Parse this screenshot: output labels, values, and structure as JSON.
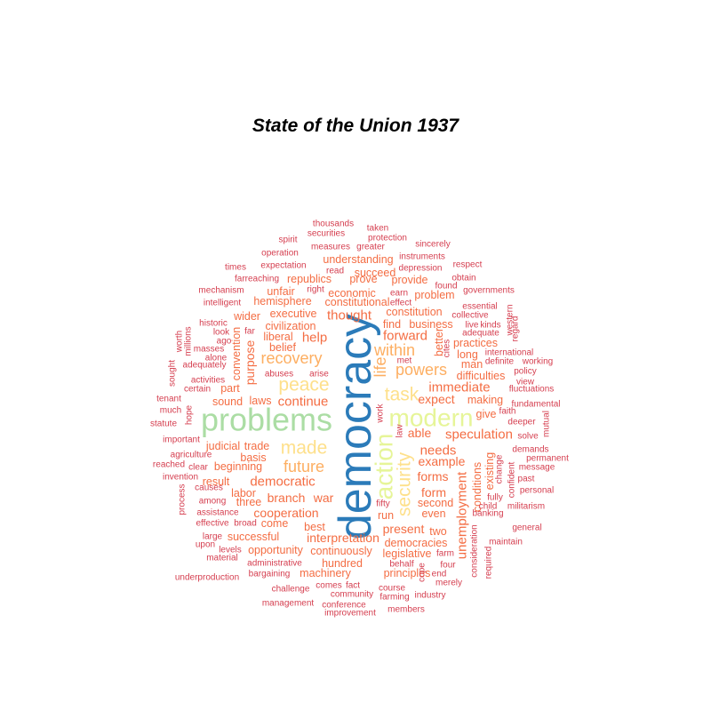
{
  "chart_data": {
    "type": "wordcloud",
    "title": "State of the Union 1937",
    "palette": {
      "c1": "#2b7bb9",
      "c2": "#abdda4",
      "c3": "#e6f598",
      "c4": "#fee08b",
      "c5": "#fdae61",
      "c6": "#f46d43",
      "c7": "#d53e4f"
    },
    "words": [
      {
        "text": "democracy",
        "tier": 1,
        "color": "c1",
        "rotate": true
      },
      {
        "text": "problems",
        "tier": 2,
        "color": "c2"
      },
      {
        "text": "modern",
        "tier": 3,
        "color": "c3"
      },
      {
        "text": "action",
        "tier": 3,
        "color": "c3",
        "rotate": true
      },
      {
        "text": "task",
        "tier": 4,
        "color": "c4"
      },
      {
        "text": "security",
        "tier": 4,
        "color": "c4",
        "rotate": true
      },
      {
        "text": "peace",
        "tier": 4,
        "color": "c4"
      },
      {
        "text": "made",
        "tier": 4,
        "color": "c4"
      },
      {
        "text": "recovery",
        "tier": 5,
        "color": "c5"
      },
      {
        "text": "powers",
        "tier": 5,
        "color": "c5"
      },
      {
        "text": "within",
        "tier": 5,
        "color": "c5"
      },
      {
        "text": "future",
        "tier": 5,
        "color": "c5"
      },
      {
        "text": "life",
        "tier": 5,
        "color": "c5",
        "rotate": true
      },
      {
        "text": "democratic",
        "tier": 6,
        "color": "c6"
      },
      {
        "text": "speculation",
        "tier": 6,
        "color": "c6"
      },
      {
        "text": "unemployment",
        "tier": 6,
        "color": "c6",
        "rotate": true
      },
      {
        "text": "needs",
        "tier": 6,
        "color": "c6"
      },
      {
        "text": "forward",
        "tier": 6,
        "color": "c6"
      },
      {
        "text": "immediate",
        "tier": 6,
        "color": "c6"
      },
      {
        "text": "help",
        "tier": 6,
        "color": "c6"
      },
      {
        "text": "thought",
        "tier": 6,
        "color": "c6"
      },
      {
        "text": "continue",
        "tier": 6,
        "color": "c6"
      },
      {
        "text": "cooperation",
        "tier": 7,
        "color": "c6"
      },
      {
        "text": "interpretation",
        "tier": 7,
        "color": "c6"
      },
      {
        "text": "example",
        "tier": 7,
        "color": "c6"
      },
      {
        "text": "forms",
        "tier": 7,
        "color": "c6"
      },
      {
        "text": "expect",
        "tier": 7,
        "color": "c6"
      },
      {
        "text": "able",
        "tier": 7,
        "color": "c6"
      },
      {
        "text": "purpose",
        "tier": 7,
        "color": "c6",
        "rotate": true
      },
      {
        "text": "present",
        "tier": 7,
        "color": "c6"
      },
      {
        "text": "form",
        "tier": 7,
        "color": "c6"
      },
      {
        "text": "branch",
        "tier": 7,
        "color": "c6"
      },
      {
        "text": "war",
        "tier": 7,
        "color": "c6"
      },
      {
        "text": "liberal",
        "tier": 8,
        "color": "c6"
      },
      {
        "text": "laws",
        "tier": 8,
        "color": "c6"
      },
      {
        "text": "trade",
        "tier": 8,
        "color": "c6"
      },
      {
        "text": "executive",
        "tier": 8,
        "color": "c6"
      },
      {
        "text": "understanding",
        "tier": 8,
        "color": "c6"
      },
      {
        "text": "economic",
        "tier": 8,
        "color": "c6"
      },
      {
        "text": "succeed",
        "tier": 8,
        "color": "c6"
      },
      {
        "text": "constitution",
        "tier": 8,
        "color": "c6"
      },
      {
        "text": "business",
        "tier": 8,
        "color": "c6"
      },
      {
        "text": "practices",
        "tier": 8,
        "color": "c6"
      },
      {
        "text": "difficulties",
        "tier": 8,
        "color": "c6"
      },
      {
        "text": "making",
        "tier": 8,
        "color": "c6"
      },
      {
        "text": "conditions",
        "tier": 8,
        "color": "c6",
        "rotate": true
      },
      {
        "text": "second",
        "tier": 8,
        "color": "c6"
      },
      {
        "text": "even",
        "tier": 8,
        "color": "c6"
      },
      {
        "text": "democracies",
        "tier": 8,
        "color": "c6"
      },
      {
        "text": "legislative",
        "tier": 8,
        "color": "c6"
      },
      {
        "text": "principles",
        "tier": 8,
        "color": "c6"
      },
      {
        "text": "successful",
        "tier": 8,
        "color": "c6"
      },
      {
        "text": "opportunity",
        "tier": 8,
        "color": "c6"
      },
      {
        "text": "continuously",
        "tier": 8,
        "color": "c6"
      },
      {
        "text": "hundred",
        "tier": 8,
        "color": "c6"
      },
      {
        "text": "machinery",
        "tier": 8,
        "color": "c6"
      },
      {
        "text": "beginning",
        "tier": 8,
        "color": "c6"
      },
      {
        "text": "result",
        "tier": 8,
        "color": "c6"
      },
      {
        "text": "three",
        "tier": 8,
        "color": "c6"
      },
      {
        "text": "labor",
        "tier": 8,
        "color": "c6"
      },
      {
        "text": "come",
        "tier": 8,
        "color": "c6"
      },
      {
        "text": "best",
        "tier": 8,
        "color": "c6"
      },
      {
        "text": "two",
        "tier": 8,
        "color": "c6"
      },
      {
        "text": "run",
        "tier": 8,
        "color": "c6"
      },
      {
        "text": "judicial",
        "tier": 8,
        "color": "c6"
      },
      {
        "text": "wider",
        "tier": 8,
        "color": "c6"
      },
      {
        "text": "hemisphere",
        "tier": 8,
        "color": "c6"
      },
      {
        "text": "civilization",
        "tier": 8,
        "color": "c6"
      },
      {
        "text": "constitutional",
        "tier": 8,
        "color": "c6"
      },
      {
        "text": "republics",
        "tier": 8,
        "color": "c6"
      },
      {
        "text": "unfair",
        "tier": 8,
        "color": "c6"
      },
      {
        "text": "prove",
        "tier": 8,
        "color": "c6"
      },
      {
        "text": "provide",
        "tier": 8,
        "color": "c6"
      },
      {
        "text": "problem",
        "tier": 8,
        "color": "c6"
      },
      {
        "text": "find",
        "tier": 8,
        "color": "c6"
      },
      {
        "text": "long",
        "tier": 8,
        "color": "c6"
      },
      {
        "text": "belief",
        "tier": 8,
        "color": "c6"
      },
      {
        "text": "part",
        "tier": 8,
        "color": "c6"
      },
      {
        "text": "sound",
        "tier": 8,
        "color": "c6"
      },
      {
        "text": "basis",
        "tier": 8,
        "color": "c6"
      },
      {
        "text": "give",
        "tier": 8,
        "color": "c6"
      },
      {
        "text": "man",
        "tier": 8,
        "color": "c6"
      },
      {
        "text": "existing",
        "tier": 8,
        "color": "c6",
        "rotate": true
      },
      {
        "text": "convention",
        "tier": 8,
        "color": "c6",
        "rotate": true
      },
      {
        "text": "better",
        "tier": 8,
        "color": "c6",
        "rotate": true
      },
      {
        "text": "thousands",
        "tier": 9,
        "color": "c7"
      },
      {
        "text": "taken",
        "tier": 9,
        "color": "c7"
      },
      {
        "text": "securities",
        "tier": 9,
        "color": "c7"
      },
      {
        "text": "protection",
        "tier": 9,
        "color": "c7"
      },
      {
        "text": "spirit",
        "tier": 9,
        "color": "c7"
      },
      {
        "text": "measures",
        "tier": 9,
        "color": "c7"
      },
      {
        "text": "greater",
        "tier": 9,
        "color": "c7"
      },
      {
        "text": "sincerely",
        "tier": 9,
        "color": "c7"
      },
      {
        "text": "operation",
        "tier": 9,
        "color": "c7"
      },
      {
        "text": "instruments",
        "tier": 9,
        "color": "c7"
      },
      {
        "text": "times",
        "tier": 9,
        "color": "c7"
      },
      {
        "text": "expectation",
        "tier": 9,
        "color": "c7"
      },
      {
        "text": "read",
        "tier": 9,
        "color": "c7"
      },
      {
        "text": "depression",
        "tier": 9,
        "color": "c7"
      },
      {
        "text": "respect",
        "tier": 9,
        "color": "c7"
      },
      {
        "text": "farreaching",
        "tier": 9,
        "color": "c7"
      },
      {
        "text": "obtain",
        "tier": 9,
        "color": "c7"
      },
      {
        "text": "found",
        "tier": 9,
        "color": "c7"
      },
      {
        "text": "mechanism",
        "tier": 9,
        "color": "c7"
      },
      {
        "text": "right",
        "tier": 9,
        "color": "c7"
      },
      {
        "text": "earn",
        "tier": 9,
        "color": "c7"
      },
      {
        "text": "governments",
        "tier": 9,
        "color": "c7"
      },
      {
        "text": "intelligent",
        "tier": 9,
        "color": "c7"
      },
      {
        "text": "effect",
        "tier": 9,
        "color": "c7"
      },
      {
        "text": "essential",
        "tier": 9,
        "color": "c7"
      },
      {
        "text": "collective",
        "tier": 9,
        "color": "c7"
      },
      {
        "text": "western",
        "tier": 9,
        "color": "c7",
        "rotate": true
      },
      {
        "text": "regard",
        "tier": 9,
        "color": "c7",
        "rotate": true
      },
      {
        "text": "historic",
        "tier": 9,
        "color": "c7"
      },
      {
        "text": "far",
        "tier": 9,
        "color": "c7"
      },
      {
        "text": "live",
        "tier": 9,
        "color": "c7"
      },
      {
        "text": "kinds",
        "tier": 9,
        "color": "c7"
      },
      {
        "text": "look",
        "tier": 9,
        "color": "c7"
      },
      {
        "text": "adequate",
        "tier": 9,
        "color": "c7"
      },
      {
        "text": "worth",
        "tier": 9,
        "color": "c7",
        "rotate": true
      },
      {
        "text": "millions",
        "tier": 9,
        "color": "c7",
        "rotate": true
      },
      {
        "text": "ago",
        "tier": 9,
        "color": "c7"
      },
      {
        "text": "cites",
        "tier": 9,
        "color": "c7",
        "rotate": true
      },
      {
        "text": "international",
        "tier": 9,
        "color": "c7"
      },
      {
        "text": "masses",
        "tier": 9,
        "color": "c7"
      },
      {
        "text": "alone",
        "tier": 9,
        "color": "c7"
      },
      {
        "text": "definite",
        "tier": 9,
        "color": "c7"
      },
      {
        "text": "working",
        "tier": 9,
        "color": "c7"
      },
      {
        "text": "sought",
        "tier": 9,
        "color": "c7",
        "rotate": true
      },
      {
        "text": "adequately",
        "tier": 9,
        "color": "c7"
      },
      {
        "text": "met",
        "tier": 9,
        "color": "c7"
      },
      {
        "text": "policy",
        "tier": 9,
        "color": "c7"
      },
      {
        "text": "abuses",
        "tier": 9,
        "color": "c7"
      },
      {
        "text": "arise",
        "tier": 9,
        "color": "c7"
      },
      {
        "text": "activities",
        "tier": 9,
        "color": "c7"
      },
      {
        "text": "view",
        "tier": 9,
        "color": "c7"
      },
      {
        "text": "certain",
        "tier": 9,
        "color": "c7"
      },
      {
        "text": "fluctuations",
        "tier": 9,
        "color": "c7"
      },
      {
        "text": "tenant",
        "tier": 9,
        "color": "c7"
      },
      {
        "text": "fundamental",
        "tier": 9,
        "color": "c7"
      },
      {
        "text": "much",
        "tier": 9,
        "color": "c7"
      },
      {
        "text": "hope",
        "tier": 9,
        "color": "c7",
        "rotate": true
      },
      {
        "text": "work",
        "tier": 9,
        "color": "c7",
        "rotate": true
      },
      {
        "text": "faith",
        "tier": 9,
        "color": "c7"
      },
      {
        "text": "statute",
        "tier": 9,
        "color": "c7"
      },
      {
        "text": "deeper",
        "tier": 9,
        "color": "c7"
      },
      {
        "text": "mutual",
        "tier": 9,
        "color": "c7",
        "rotate": true
      },
      {
        "text": "law",
        "tier": 9,
        "color": "c7",
        "rotate": true
      },
      {
        "text": "solve",
        "tier": 9,
        "color": "c7"
      },
      {
        "text": "important",
        "tier": 9,
        "color": "c7"
      },
      {
        "text": "demands",
        "tier": 9,
        "color": "c7"
      },
      {
        "text": "agriculture",
        "tier": 9,
        "color": "c7"
      },
      {
        "text": "permanent",
        "tier": 9,
        "color": "c7"
      },
      {
        "text": "reached",
        "tier": 9,
        "color": "c7"
      },
      {
        "text": "clear",
        "tier": 9,
        "color": "c7"
      },
      {
        "text": "change",
        "tier": 9,
        "color": "c7",
        "rotate": true
      },
      {
        "text": "message",
        "tier": 9,
        "color": "c7"
      },
      {
        "text": "invention",
        "tier": 9,
        "color": "c7"
      },
      {
        "text": "confident",
        "tier": 9,
        "color": "c7",
        "rotate": true
      },
      {
        "text": "past",
        "tier": 9,
        "color": "c7"
      },
      {
        "text": "process",
        "tier": 9,
        "color": "c7",
        "rotate": true
      },
      {
        "text": "causes",
        "tier": 9,
        "color": "c7"
      },
      {
        "text": "personal",
        "tier": 9,
        "color": "c7"
      },
      {
        "text": "among",
        "tier": 9,
        "color": "c7"
      },
      {
        "text": "fully",
        "tier": 9,
        "color": "c7"
      },
      {
        "text": "fifty",
        "tier": 9,
        "color": "c7"
      },
      {
        "text": "child",
        "tier": 9,
        "color": "c7"
      },
      {
        "text": "militarism",
        "tier": 9,
        "color": "c7"
      },
      {
        "text": "assistance",
        "tier": 9,
        "color": "c7"
      },
      {
        "text": "banking",
        "tier": 9,
        "color": "c7"
      },
      {
        "text": "effective",
        "tier": 9,
        "color": "c7"
      },
      {
        "text": "broad",
        "tier": 9,
        "color": "c7"
      },
      {
        "text": "general",
        "tier": 9,
        "color": "c7"
      },
      {
        "text": "large",
        "tier": 9,
        "color": "c7"
      },
      {
        "text": "upon",
        "tier": 9,
        "color": "c7"
      },
      {
        "text": "maintain",
        "tier": 9,
        "color": "c7"
      },
      {
        "text": "levels",
        "tier": 9,
        "color": "c7"
      },
      {
        "text": "consideration",
        "tier": 9,
        "color": "c7",
        "rotate": true
      },
      {
        "text": "material",
        "tier": 9,
        "color": "c7"
      },
      {
        "text": "farm",
        "tier": 9,
        "color": "c7"
      },
      {
        "text": "administrative",
        "tier": 9,
        "color": "c7"
      },
      {
        "text": "behalf",
        "tier": 9,
        "color": "c7"
      },
      {
        "text": "four",
        "tier": 9,
        "color": "c7"
      },
      {
        "text": "required",
        "tier": 9,
        "color": "c7",
        "rotate": true
      },
      {
        "text": "bargaining",
        "tier": 9,
        "color": "c7"
      },
      {
        "text": "cope",
        "tier": 9,
        "color": "c7",
        "rotate": true
      },
      {
        "text": "end",
        "tier": 9,
        "color": "c7"
      },
      {
        "text": "underproduction",
        "tier": 9,
        "color": "c7"
      },
      {
        "text": "merely",
        "tier": 9,
        "color": "c7"
      },
      {
        "text": "challenge",
        "tier": 9,
        "color": "c7"
      },
      {
        "text": "comes",
        "tier": 9,
        "color": "c7"
      },
      {
        "text": "fact",
        "tier": 9,
        "color": "c7"
      },
      {
        "text": "course",
        "tier": 9,
        "color": "c7"
      },
      {
        "text": "community",
        "tier": 9,
        "color": "c7"
      },
      {
        "text": "industry",
        "tier": 9,
        "color": "c7"
      },
      {
        "text": "farming",
        "tier": 9,
        "color": "c7"
      },
      {
        "text": "management",
        "tier": 9,
        "color": "c7"
      },
      {
        "text": "conference",
        "tier": 9,
        "color": "c7"
      },
      {
        "text": "members",
        "tier": 9,
        "color": "c7"
      },
      {
        "text": "improvement",
        "tier": 9,
        "color": "c7"
      }
    ]
  }
}
